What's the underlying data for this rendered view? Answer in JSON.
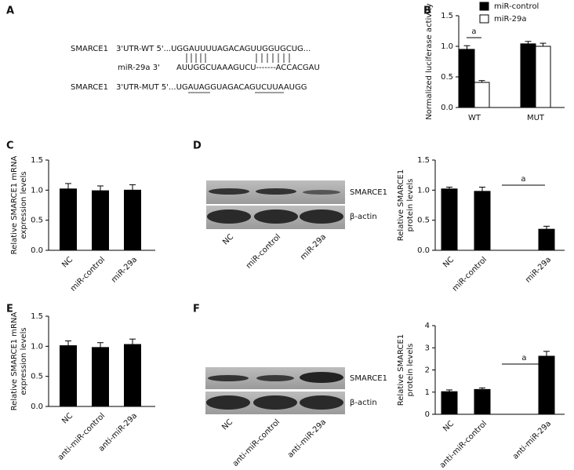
{
  "panels": [
    "A",
    "B",
    "C",
    "D",
    "E",
    "F"
  ],
  "sequence": {
    "wt": [
      "SMARCE1",
      "3'UTR-WT 5'...UGGAUUUUAGACAGUUGGUGCUG..."
    ],
    "mir": [
      "miR-29a 3'",
      "AUUGGCUAAAGUCU-------ACCACGAU"
    ],
    "mut": [
      "SMARCE1",
      "3'UTR-MUT 5'...UGAUAGGUAGACAGUCUUAAUGG"
    ]
  },
  "blots": [
    {
      "bands": [
        "SMARCE1",
        "β-actin"
      ],
      "lanes": [
        "NC",
        "miR-control",
        "miR-29a"
      ]
    },
    {
      "bands": [
        "SMARCE1",
        "β-actin"
      ],
      "lanes": [
        "NC",
        "anti-miR-control",
        "anti-miR-29a"
      ]
    }
  ],
  "chart_data": [
    {
      "type": "bar",
      "y_label": [
        "Normalized luciferase activity"
      ],
      "categories": [
        "WT",
        "MUT"
      ],
      "series": [
        {
          "name": "miR-control",
          "color": "#000000",
          "values": [
            0.95,
            1.04
          ],
          "errors": [
            0.06,
            0.04
          ]
        },
        {
          "name": "miR-29a",
          "color": "#ffffff",
          "values": [
            0.41,
            1.0
          ],
          "errors": [
            0.03,
            0.05
          ]
        }
      ],
      "ylim": [
        0,
        1.5
      ],
      "yticks": [
        {
          "value": 0,
          "label": "0.0"
        },
        {
          "value": 0.5,
          "label": "0.5"
        },
        {
          "value": 1,
          "label": "1.0"
        },
        {
          "value": 1.5,
          "label": "1.5"
        }
      ],
      "annotation": "a"
    },
    {
      "type": "bar",
      "y_label": [
        "Relative SMARCE1 mRNA",
        "expression levels"
      ],
      "categories": [
        "NC",
        "miR-control",
        "miR-29a"
      ],
      "series": [
        {
          "color": "#000000",
          "values": [
            1.02,
            0.99,
            1.0
          ],
          "errors": [
            0.09,
            0.08,
            0.09
          ]
        }
      ],
      "ylim": [
        0,
        1.5
      ],
      "yticks": [
        {
          "value": 0,
          "label": "0.0"
        },
        {
          "value": 0.5,
          "label": "0.5"
        },
        {
          "value": 1,
          "label": "1.0"
        },
        {
          "value": 1.5,
          "label": "1.5"
        }
      ]
    },
    {
      "type": "bar",
      "y_label": [
        "Relative SMARCE1",
        "protein levels"
      ],
      "categories": [
        "NC",
        "miR-control",
        "miR-29a"
      ],
      "series": [
        {
          "color": "#000000",
          "values": [
            1.02,
            0.98,
            0.35
          ],
          "errors": [
            0.03,
            0.07,
            0.05
          ]
        }
      ],
      "ylim": [
        0,
        1.5
      ],
      "yticks": [
        {
          "value": 0,
          "label": "0.0"
        },
        {
          "value": 0.5,
          "label": "0.5"
        },
        {
          "value": 1,
          "label": "1.0"
        },
        {
          "value": 1.5,
          "label": "1.5"
        }
      ],
      "annotation": "a"
    },
    {
      "type": "bar",
      "y_label": [
        "Relative SMARCE1 mRNA",
        "expression levels"
      ],
      "categories": [
        "NC",
        "anti-miR-control",
        "anti-miR-29a"
      ],
      "series": [
        {
          "color": "#000000",
          "values": [
            1.01,
            0.98,
            1.03
          ],
          "errors": [
            0.08,
            0.08,
            0.09
          ]
        }
      ],
      "ylim": [
        0,
        1.5
      ],
      "yticks": [
        {
          "value": 0,
          "label": "0.0"
        },
        {
          "value": 0.5,
          "label": "0.5"
        },
        {
          "value": 1,
          "label": "1.0"
        },
        {
          "value": 1.5,
          "label": "1.5"
        }
      ]
    },
    {
      "type": "bar",
      "y_label": [
        "Relative SMARCE1",
        "protein levels"
      ],
      "categories": [
        "NC",
        "anti-miR-control",
        "anti-miR-29a"
      ],
      "series": [
        {
          "color": "#000000",
          "values": [
            1.02,
            1.12,
            2.62
          ],
          "errors": [
            0.08,
            0.07,
            0.22
          ]
        }
      ],
      "ylim": [
        0,
        4
      ],
      "yticks": [
        0,
        1,
        2,
        3,
        4
      ],
      "annotation": "a"
    }
  ]
}
